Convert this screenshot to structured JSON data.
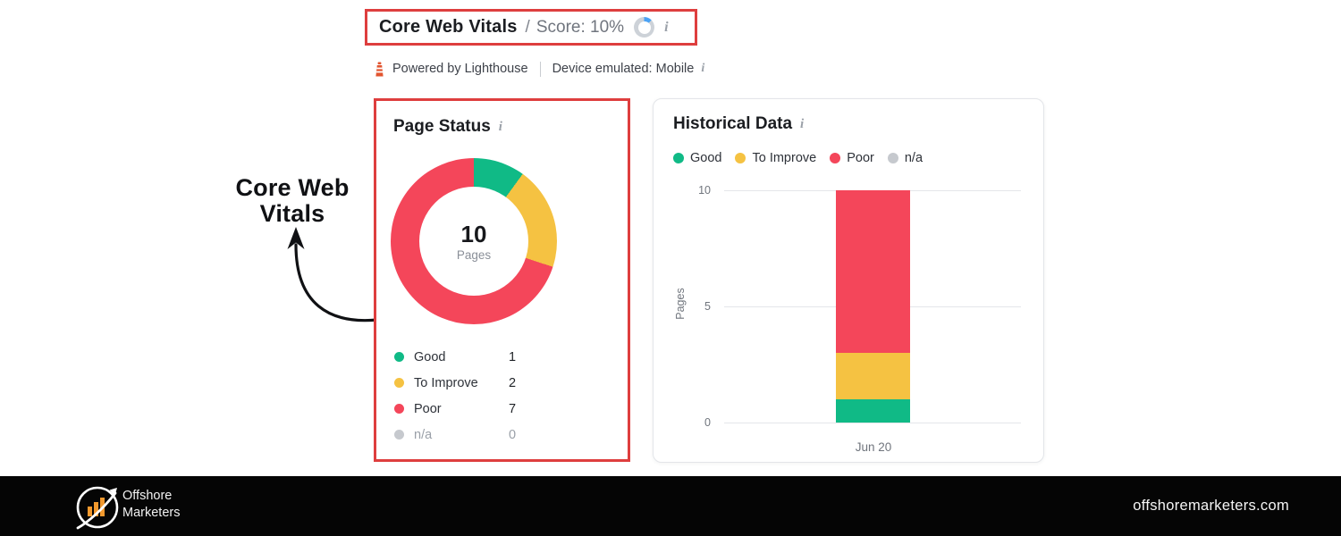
{
  "header": {
    "title": "Core Web Vitals",
    "separator": "/",
    "score_text": "Score: 10%",
    "score_percent": 10,
    "info_icon": "i"
  },
  "meta": {
    "powered_by": "Powered by Lighthouse",
    "device": "Device emulated: Mobile",
    "info_icon": "i"
  },
  "annotation": {
    "line1": "Core Web",
    "line2": "Vitals"
  },
  "cards": {
    "page_status": {
      "title": "Page Status",
      "info_icon": "i"
    },
    "historical": {
      "title": "Historical Data",
      "info_icon": "i",
      "yticks": [
        "10",
        "5",
        "0"
      ],
      "ylabel": "Pages",
      "xlabel": "Jun 20"
    }
  },
  "chart_data": [
    {
      "type": "pie",
      "subtype": "donut",
      "title": "Page Status",
      "labels": [
        "Good",
        "To Improve",
        "Poor",
        "n/a"
      ],
      "values": [
        1,
        2,
        7,
        0
      ],
      "colors": [
        "#10BA86",
        "#F5C242",
        "#F4465A",
        "#C6C9CE"
      ],
      "center_value": "10",
      "center_label": "Pages",
      "legend_position": "bottom"
    },
    {
      "type": "bar",
      "stacked": true,
      "title": "Historical Data",
      "categories": [
        "Jun 20"
      ],
      "series": [
        {
          "name": "Good",
          "values": [
            1
          ],
          "color": "#10BA86"
        },
        {
          "name": "To Improve",
          "values": [
            2
          ],
          "color": "#F5C242"
        },
        {
          "name": "Poor",
          "values": [
            7
          ],
          "color": "#F4465A"
        },
        {
          "name": "n/a",
          "values": [
            0
          ],
          "color": "#C6C9CE"
        }
      ],
      "xlabel": "",
      "ylabel": "Pages",
      "ylim": [
        0,
        10
      ],
      "yticks": [
        0,
        5,
        10
      ],
      "grid": true,
      "legend_position": "top"
    }
  ],
  "footer": {
    "brand_line1": "Offshore",
    "brand_line2": "Marketers",
    "domain": "offshoremarketers.com"
  },
  "colors": {
    "highlight_red": "#DE3E3E",
    "ring_progress": "#4BA3F5",
    "ring_track": "#CDD2D8",
    "good": "#10BA86",
    "to_improve": "#F5C242",
    "poor": "#F4465A",
    "na": "#C6C9CE",
    "footer_bg": "#050505",
    "logo_orange": "#F2992E"
  }
}
